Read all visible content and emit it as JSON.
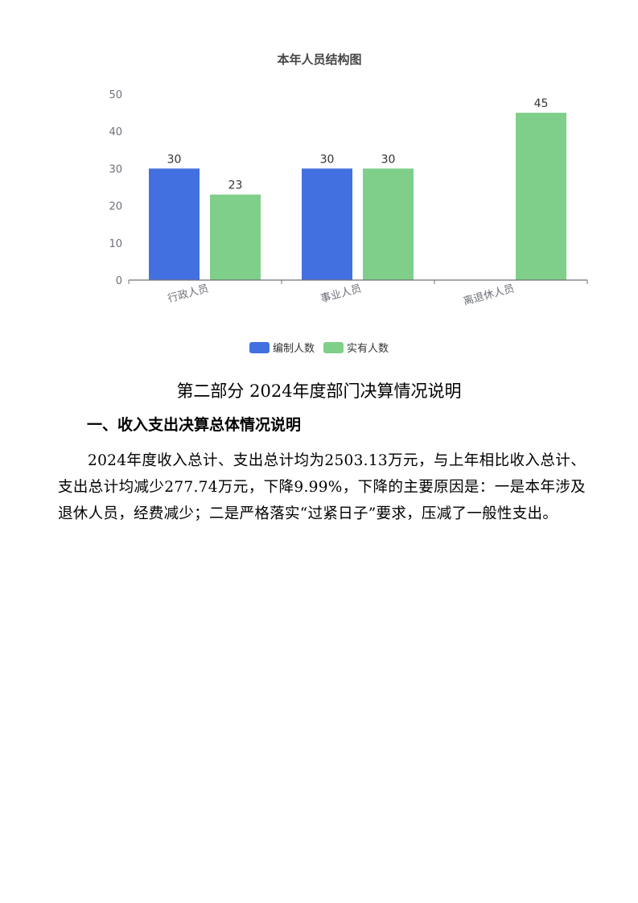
{
  "chart_data": {
    "type": "bar",
    "title": "本年人员结构图",
    "categories": [
      "行政人员",
      "事业人员",
      "离退休人员"
    ],
    "series": [
      {
        "name": "编制人数",
        "values": [
          30,
          30,
          null
        ],
        "color": "#4370E0"
      },
      {
        "name": "实有人数",
        "values": [
          23,
          30,
          45
        ],
        "color": "#7FCF8A"
      }
    ],
    "ylim": [
      0,
      50
    ],
    "yticks": [
      0,
      10,
      20,
      30,
      40,
      50
    ],
    "grid": false,
    "legend": "bottom",
    "data_labels": true
  },
  "document": {
    "section_title": "第二部分 2024年度部门决算情况说明",
    "subsection_title": "一、收入支出决算总体情况说明",
    "paragraph": "2024年度收入总计、支出总计均为2503.13万元，与上年相比收入总计、支出总计均减少277.74万元，下降9.99%，下降的主要原因是：一是本年涉及退休人员，经费减少；二是严格落实“过紧日子”要求，压减了一般性支出。"
  }
}
